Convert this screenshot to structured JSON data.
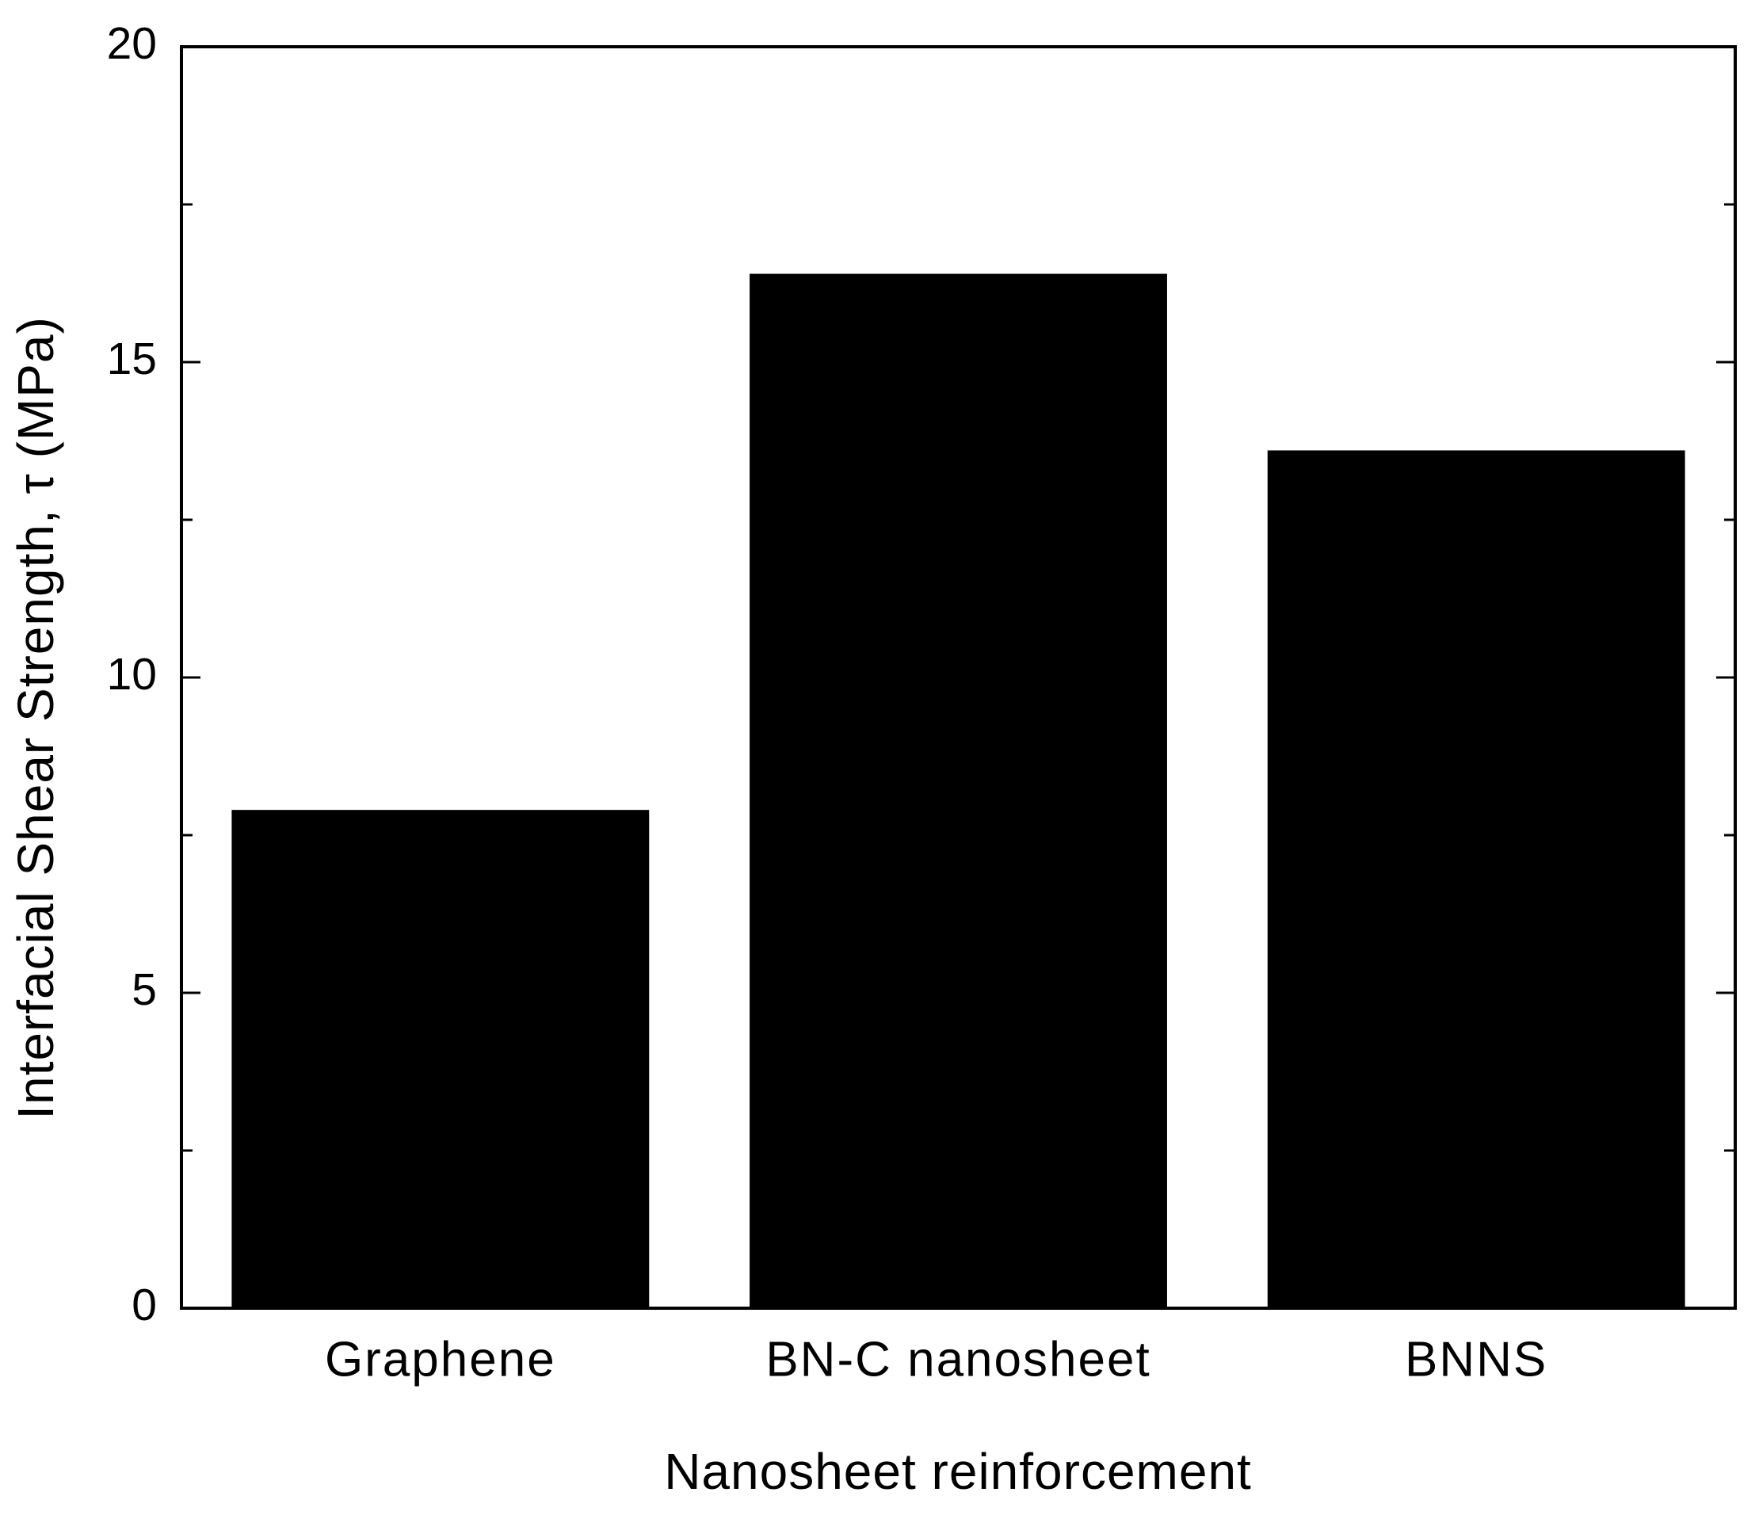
{
  "chart_data": {
    "type": "bar",
    "x_label": "Nanosheet reinforcement",
    "y_label": "Interfacial Shear Strength, τ (MPa)",
    "categories": [
      "Graphene",
      "BN-C nanosheet",
      "BNNS"
    ],
    "values": [
      7.9,
      16.4,
      13.6
    ],
    "color": "#000000",
    "ylim": [
      0,
      20
    ],
    "yticks": [
      0,
      5,
      10,
      15,
      20
    ],
    "minor_yticks": [
      2.5,
      7.5,
      12.5,
      17.5
    ],
    "grid": false
  }
}
